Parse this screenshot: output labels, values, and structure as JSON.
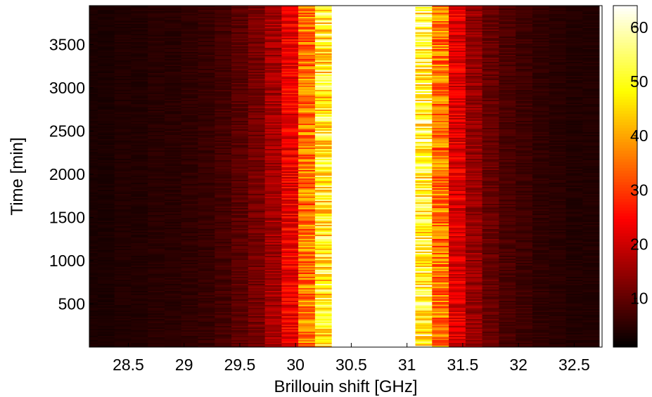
{
  "chart_data": {
    "type": "heatmap",
    "title": "",
    "xlabel": "Brillouin shift [GHz]",
    "ylabel": "Time [min]",
    "xlim": [
      28.15,
      32.75
    ],
    "ylim": [
      0,
      3950
    ],
    "x_ticks": [
      "28.5",
      "29",
      "29.5",
      "30",
      "30.5",
      "31",
      "31.5",
      "32",
      "32.5"
    ],
    "x_tick_values": [
      28.5,
      29,
      29.5,
      30,
      30.5,
      31,
      31.5,
      32,
      32.5
    ],
    "y_ticks": [
      "500",
      "1000",
      "1500",
      "2000",
      "2500",
      "3000",
      "3500"
    ],
    "y_tick_values": [
      500,
      1000,
      1500,
      2000,
      2500,
      3000,
      3500
    ],
    "colorbar": {
      "colormap": "hot",
      "range": [
        1,
        64
      ],
      "ticks": [
        "10",
        "20",
        "30",
        "40",
        "50",
        "60"
      ],
      "tick_values": [
        10,
        20,
        30,
        40,
        50,
        60
      ]
    },
    "frequency_grid_ghz": [
      28.15,
      28.3,
      28.45,
      28.6,
      28.75,
      28.9,
      29.05,
      29.2,
      29.35,
      29.5,
      29.65,
      29.8,
      29.95,
      30.1,
      30.25,
      30.4,
      30.55,
      30.7,
      30.85,
      31.0,
      31.15,
      31.3,
      31.45,
      31.6,
      31.75,
      31.9,
      32.05,
      32.2,
      32.35,
      32.5,
      32.65
    ],
    "mean_intensity_profile": [
      4,
      4,
      5,
      5,
      6,
      6,
      7,
      8,
      10,
      13,
      17,
      24,
      35,
      55,
      75,
      100,
      100,
      100,
      100,
      100,
      80,
      55,
      33,
      22,
      15,
      11,
      9,
      7,
      6,
      5,
      5
    ],
    "time_range_min": [
      0,
      3950
    ]
  }
}
